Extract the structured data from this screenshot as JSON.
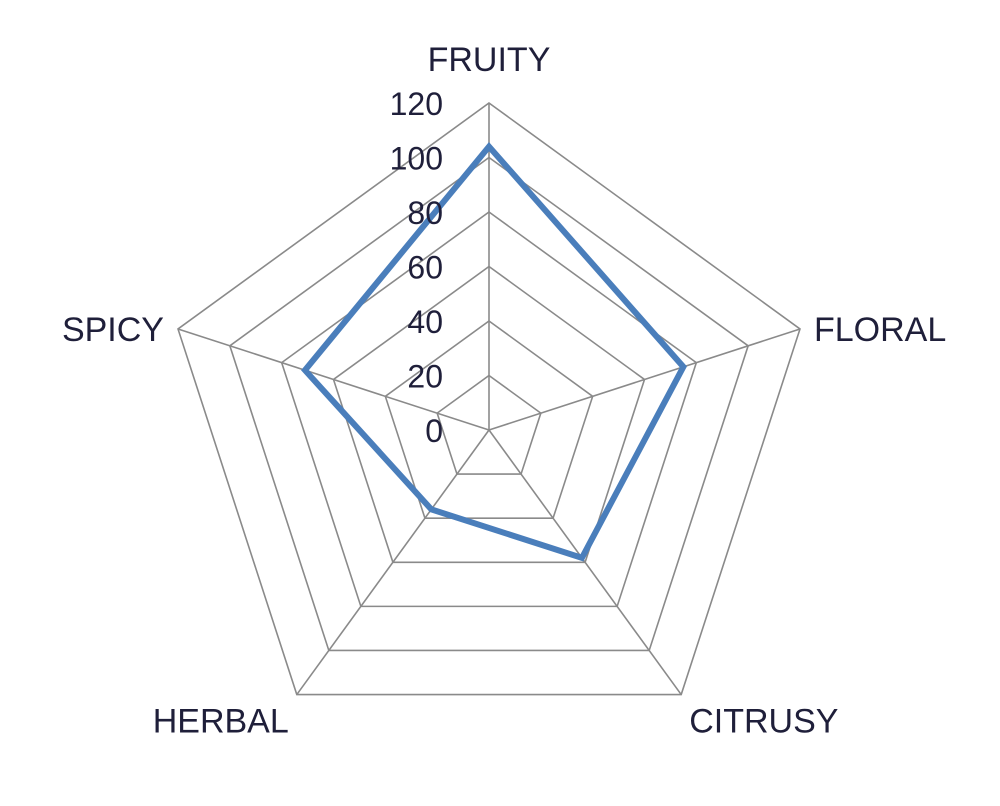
{
  "chart_data": {
    "type": "radar",
    "categories": [
      "FRUITY",
      "FLORAL",
      "CITRUSY",
      "HERBAL",
      "SPICY"
    ],
    "series": [
      {
        "values": [
          104,
          75,
          58,
          36,
          71
        ],
        "color": "#4a7ebb"
      }
    ],
    "rlim": [
      0,
      120
    ],
    "ticks": [
      "0",
      "20",
      "40",
      "60",
      "80",
      "100",
      "120"
    ],
    "tick_values": [
      0,
      20,
      40,
      60,
      80,
      100,
      120
    ],
    "grid": true,
    "grid_color": "#8a8a8a"
  }
}
